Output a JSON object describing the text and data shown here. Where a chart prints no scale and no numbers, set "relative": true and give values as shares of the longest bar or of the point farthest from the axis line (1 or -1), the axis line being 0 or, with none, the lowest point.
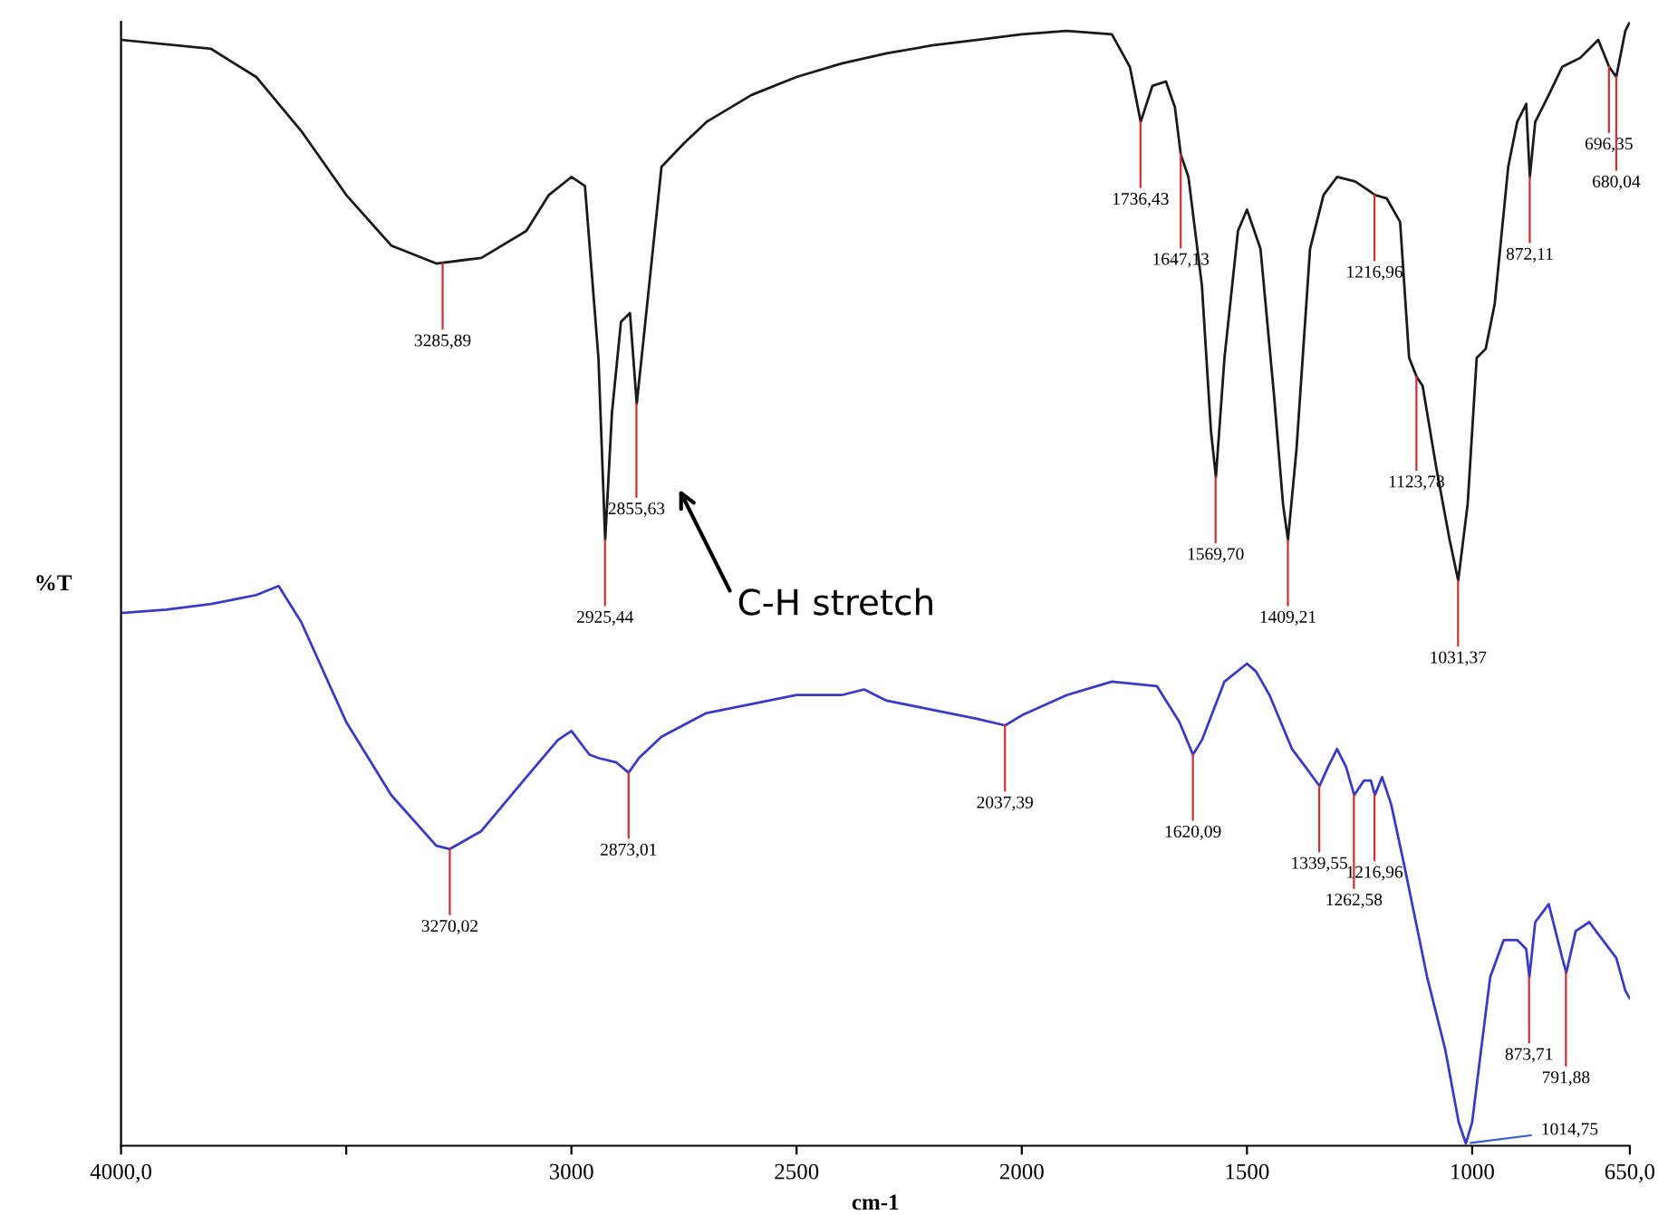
{
  "chart_data": {
    "type": "line",
    "relative": true,
    "xlabel": "cm-1",
    "ylabel": "%T",
    "xlim": [
      4000,
      650
    ],
    "xticks": [
      {
        "value": 4000,
        "label": "4000,0"
      },
      {
        "value": 3500,
        "label": null
      },
      3000,
      2500,
      2000,
      1500,
      1000,
      {
        "value": 650,
        "label": "650,0"
      }
    ],
    "grid": false,
    "marker": "none",
    "line_style": "solid",
    "series": [
      {
        "color": "#1a1a1a",
        "x": [
          4000,
          3800,
          3700,
          3600,
          3500,
          3400,
          3300,
          3200,
          3100,
          3050,
          3000,
          2970,
          2940,
          2925,
          2910,
          2890,
          2870,
          2855,
          2840,
          2800,
          2750,
          2700,
          2600,
          2500,
          2400,
          2300,
          2200,
          2100,
          2000,
          1900,
          1800,
          1760,
          1736,
          1710,
          1680,
          1660,
          1647,
          1630,
          1600,
          1580,
          1569,
          1550,
          1520,
          1500,
          1470,
          1440,
          1420,
          1409,
          1390,
          1360,
          1330,
          1300,
          1260,
          1230,
          1216,
          1190,
          1160,
          1140,
          1123,
          1110,
          1080,
          1050,
          1031,
          1010,
          990,
          970,
          950,
          920,
          900,
          880,
          872,
          860,
          830,
          800,
          760,
          720,
          696,
          680,
          660,
          650
        ],
        "values": [
          0.984,
          0.976,
          0.951,
          0.903,
          0.846,
          0.801,
          0.785,
          0.79,
          0.814,
          0.846,
          0.862,
          0.854,
          0.701,
          0.539,
          0.652,
          0.733,
          0.741,
          0.66,
          0.717,
          0.871,
          0.892,
          0.911,
          0.935,
          0.951,
          0.963,
          0.972,
          0.979,
          0.984,
          0.989,
          0.992,
          0.989,
          0.96,
          0.911,
          0.943,
          0.947,
          0.924,
          0.882,
          0.862,
          0.765,
          0.636,
          0.595,
          0.701,
          0.814,
          0.833,
          0.798,
          0.668,
          0.571,
          0.539,
          0.62,
          0.798,
          0.846,
          0.862,
          0.858,
          0.85,
          0.846,
          0.843,
          0.822,
          0.701,
          0.684,
          0.676,
          0.604,
          0.539,
          0.503,
          0.571,
          0.701,
          0.709,
          0.749,
          0.871,
          0.911,
          0.927,
          0.862,
          0.911,
          0.935,
          0.96,
          0.968,
          0.984,
          0.96,
          0.951,
          0.992,
          1.0
        ]
      },
      {
        "color": "#3a3ac8",
        "x": [
          4000,
          3900,
          3800,
          3700,
          3650,
          3600,
          3500,
          3400,
          3300,
          3270,
          3200,
          3100,
          3030,
          3000,
          2960,
          2940,
          2900,
          2873,
          2850,
          2800,
          2700,
          2600,
          2500,
          2400,
          2350,
          2300,
          2200,
          2100,
          2037,
          2000,
          1900,
          1800,
          1700,
          1650,
          1620,
          1600,
          1550,
          1500,
          1480,
          1450,
          1400,
          1370,
          1339,
          1320,
          1300,
          1280,
          1262,
          1240,
          1225,
          1216,
          1200,
          1180,
          1150,
          1100,
          1060,
          1030,
          1014,
          1000,
          980,
          960,
          930,
          900,
          880,
          873,
          860,
          830,
          800,
          791,
          770,
          740,
          710,
          680,
          660,
          650
        ],
        "values": [
          0.474,
          0.477,
          0.482,
          0.49,
          0.498,
          0.466,
          0.377,
          0.312,
          0.267,
          0.264,
          0.28,
          0.328,
          0.361,
          0.369,
          0.348,
          0.345,
          0.341,
          0.332,
          0.345,
          0.364,
          0.385,
          0.393,
          0.401,
          0.401,
          0.406,
          0.396,
          0.388,
          0.38,
          0.374,
          0.383,
          0.401,
          0.413,
          0.409,
          0.377,
          0.348,
          0.361,
          0.413,
          0.429,
          0.422,
          0.401,
          0.353,
          0.337,
          0.32,
          0.337,
          0.353,
          0.337,
          0.312,
          0.325,
          0.325,
          0.312,
          0.328,
          0.304,
          0.248,
          0.15,
          0.086,
          0.021,
          0.002,
          0.021,
          0.086,
          0.15,
          0.183,
          0.183,
          0.175,
          0.15,
          0.199,
          0.215,
          0.167,
          0.154,
          0.191,
          0.199,
          0.183,
          0.167,
          0.138,
          0.131
        ]
      }
    ],
    "annotations": [
      {
        "text": "3285,89",
        "x": 3285.89,
        "y": 0.785
      },
      {
        "text": "2925,44",
        "x": 2925.44,
        "y": 0.539
      },
      {
        "text": "2855,63",
        "x": 2855.63,
        "y": 0.66
      },
      "C-H stretch",
      {
        "text": "1736,43",
        "x": 1736.43,
        "y": 0.911
      },
      {
        "text": "1647,13",
        "x": 1647.13,
        "y": 0.882
      },
      {
        "text": "1569,70",
        "x": 1569.7,
        "y": 0.595
      },
      {
        "text": "1409,21",
        "x": 1409.21,
        "y": 0.539
      },
      {
        "text": "1216,96",
        "x": 1216.96,
        "y": 0.846
      },
      {
        "text": "1123,78",
        "x": 1123.78,
        "y": 0.684
      },
      {
        "text": "1031,37",
        "x": 1031.37,
        "y": 0.503
      },
      {
        "text": "872,11",
        "x": 872.11,
        "y": 0.862
      },
      {
        "text": "696,35",
        "x": 696.35,
        "y": 0.96
      },
      {
        "text": "680,04",
        "x": 680.04,
        "y": 0.951
      },
      {
        "text": "3270,02",
        "x": 3270.02,
        "y": 0.264
      },
      {
        "text": "2873,01",
        "x": 2873.01,
        "y": 0.332
      },
      {
        "text": "2037,39",
        "x": 2037.39,
        "y": 0.374
      },
      {
        "text": "1620,09",
        "x": 1620.09,
        "y": 0.348
      },
      {
        "text": "1339,55",
        "x": 1339.55,
        "y": 0.32
      },
      {
        "text": "1262,58",
        "x": 1262.58,
        "y": 0.312
      },
      {
        "text": "1216,96",
        "x": 1216.96,
        "y": 0.312
      },
      {
        "text": "1014,75",
        "x": 1014.75,
        "y": 0.002
      },
      {
        "text": "873,71",
        "x": 873.71,
        "y": 0.15
      },
      {
        "text": "791,88",
        "x": 791.88,
        "y": 0.154
      }
    ]
  }
}
